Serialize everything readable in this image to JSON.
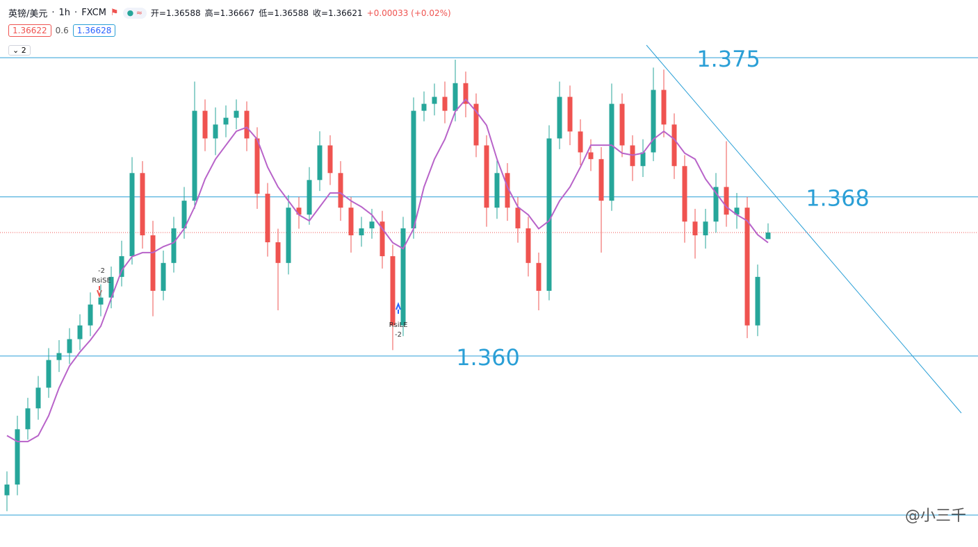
{
  "header": {
    "symbol": "英镑/美元",
    "interval": "1h",
    "source": "FXCM",
    "open": "开=1.36588",
    "high": "高=1.36667",
    "low": "低=1.36588",
    "close": "收=1.36621",
    "change": "+0.00033 (+0.02%)",
    "bid": "1.36622",
    "spread": "0.6",
    "ask": "1.36628",
    "indicators": "2"
  },
  "chart_data": {
    "type": "candlestick",
    "up_color": "#26a69a",
    "down_color": "#ef5350",
    "ma_color": "#b863c9",
    "level_color": "#2a9fd6",
    "ylim": [
      1.3504,
      1.3779
    ],
    "open": [
      1.353,
      1.35354,
      1.35632,
      1.35737,
      1.35841,
      1.3598,
      1.36015,
      1.36085,
      1.36154,
      1.36259,
      1.36294,
      1.36398,
      1.36502,
      1.3692,
      1.36607,
      1.36328,
      1.36468,
      1.36642,
      1.36781,
      1.37233,
      1.37094,
      1.37164,
      1.37198,
      1.37233,
      1.37094,
      1.36816,
      1.36572,
      1.36468,
      1.36746,
      1.36711,
      1.36885,
      1.37059,
      1.3692,
      1.36746,
      1.36607,
      1.36642,
      1.36676,
      1.36502,
      1.36154,
      1.36642,
      1.37233,
      1.37268,
      1.37303,
      1.37233,
      1.37372,
      1.37268,
      1.37059,
      1.36746,
      1.3692,
      1.36746,
      1.36642,
      1.36468,
      1.36328,
      1.37094,
      1.37303,
      1.37129,
      1.37024,
      1.3699,
      1.36781,
      1.37268,
      1.37059,
      1.36955,
      1.37024,
      1.37338,
      1.37164,
      1.36955,
      1.36676,
      1.36607,
      1.36676,
      1.3685,
      1.36711,
      1.36746,
      1.36154,
      1.36588
    ],
    "high": [
      1.3542,
      1.357,
      1.3579,
      1.359,
      1.3604,
      1.3608,
      1.3614,
      1.3621,
      1.3632,
      1.3636,
      1.3645,
      1.3658,
      1.37,
      1.3698,
      1.3668,
      1.3653,
      1.367,
      1.3685,
      1.3738,
      1.3729,
      1.3725,
      1.3726,
      1.3729,
      1.3728,
      1.3715,
      1.3687,
      1.3664,
      1.3681,
      1.368,
      1.3695,
      1.3713,
      1.3711,
      1.3698,
      1.368,
      1.367,
      1.3674,
      1.3673,
      1.3656,
      1.367,
      1.373,
      1.3733,
      1.3737,
      1.3738,
      1.3749,
      1.3743,
      1.3732,
      1.3711,
      1.3699,
      1.3697,
      1.368,
      1.367,
      1.3652,
      1.3716,
      1.3738,
      1.3736,
      1.3719,
      1.3709,
      1.3705,
      1.3737,
      1.3732,
      1.3711,
      1.3709,
      1.3745,
      1.3744,
      1.3722,
      1.3701,
      1.3674,
      1.3674,
      1.3692,
      1.3708,
      1.3682,
      1.368,
      1.3646,
      1.36667
    ],
    "low": [
      1.3522,
      1.353,
      1.3558,
      1.3568,
      1.3579,
      1.3592,
      1.3596,
      1.3603,
      1.361,
      1.362,
      1.3624,
      1.3635,
      1.3646,
      1.3654,
      1.362,
      1.3628,
      1.3642,
      1.3659,
      1.3674,
      1.3703,
      1.3701,
      1.371,
      1.3714,
      1.3703,
      1.3674,
      1.365,
      1.3623,
      1.3641,
      1.3664,
      1.3666,
      1.3683,
      1.3686,
      1.3668,
      1.3652,
      1.3655,
      1.3659,
      1.3644,
      1.3603,
      1.361,
      1.3659,
      1.3718,
      1.3721,
      1.3717,
      1.3718,
      1.372,
      1.37,
      1.3665,
      1.3669,
      1.3668,
      1.3657,
      1.364,
      1.3623,
      1.3628,
      1.3704,
      1.3706,
      1.3696,
      1.3693,
      1.3652,
      1.3673,
      1.37,
      1.3688,
      1.369,
      1.3698,
      1.371,
      1.3689,
      1.3657,
      1.3649,
      1.3654,
      1.3662,
      1.3665,
      1.3664,
      1.3609,
      1.361,
      1.36588
    ],
    "close": [
      1.35354,
      1.35632,
      1.35737,
      1.35841,
      1.3598,
      1.36015,
      1.36085,
      1.36154,
      1.36259,
      1.36294,
      1.36398,
      1.36502,
      1.3692,
      1.36607,
      1.36328,
      1.36468,
      1.36642,
      1.36781,
      1.37233,
      1.37094,
      1.37164,
      1.37198,
      1.37233,
      1.37094,
      1.36816,
      1.36572,
      1.36468,
      1.36746,
      1.36711,
      1.36885,
      1.37059,
      1.3692,
      1.36746,
      1.36607,
      1.36642,
      1.36676,
      1.36502,
      1.36154,
      1.36642,
      1.37233,
      1.37268,
      1.37303,
      1.37233,
      1.37372,
      1.37268,
      1.37059,
      1.36746,
      1.3692,
      1.36746,
      1.36642,
      1.36468,
      1.36328,
      1.37094,
      1.37303,
      1.37129,
      1.37024,
      1.3699,
      1.36781,
      1.37268,
      1.37059,
      1.36955,
      1.37024,
      1.37338,
      1.37164,
      1.36955,
      1.36676,
      1.36607,
      1.36676,
      1.3685,
      1.36711,
      1.36746,
      1.36154,
      1.36398,
      1.36621
    ],
    "ma": [
      1.356,
      1.3557,
      1.3557,
      1.356,
      1.357,
      1.3584,
      1.3595,
      1.3602,
      1.3608,
      1.3615,
      1.3629,
      1.3643,
      1.365,
      1.3652,
      1.3652,
      1.3655,
      1.3657,
      1.3664,
      1.3675,
      1.3689,
      1.3699,
      1.3706,
      1.3713,
      1.3715,
      1.3709,
      1.3695,
      1.3685,
      1.3678,
      1.3671,
      1.3668,
      1.3675,
      1.3682,
      1.3682,
      1.3678,
      1.3675,
      1.3671,
      1.3664,
      1.3657,
      1.3654,
      1.3664,
      1.3685,
      1.3699,
      1.3709,
      1.3723,
      1.3729,
      1.3723,
      1.3716,
      1.3699,
      1.3685,
      1.3675,
      1.3671,
      1.3664,
      1.3668,
      1.3678,
      1.3685,
      1.3695,
      1.3706,
      1.3706,
      1.3706,
      1.3702,
      1.3701,
      1.3702,
      1.3709,
      1.3713,
      1.3709,
      1.3702,
      1.3699,
      1.3689,
      1.3682,
      1.3675,
      1.3671,
      1.3668,
      1.3661,
      1.3657
    ],
    "levels": [
      1.375,
      1.368,
      {
        "value": 1.36,
        "label": "1.360"
      }
    ],
    "annotations": [
      "-2",
      "RsiSE",
      "RsiLE",
      "-2"
    ],
    "watermark": "@小三千"
  }
}
